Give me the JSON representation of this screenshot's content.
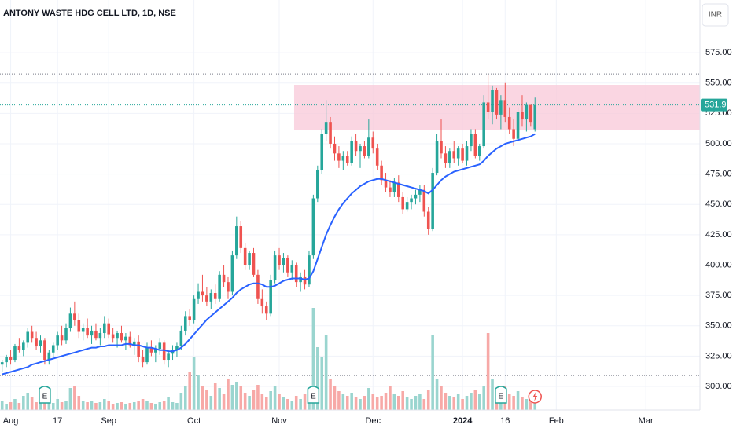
{
  "chart_data": {
    "type": "candlestick",
    "title": "ANTONY WASTE HDG CELL LTD, 1D, NSE",
    "currency": "INR",
    "up_color": "#26a69a",
    "down_color": "#ef5350",
    "volume_up_color": "#9ad5cf",
    "volume_down_color": "#f7a9a7",
    "ma_color": "#2962ff",
    "zone_color": "#f8c8d8",
    "xlim": [
      -0.5,
      163.7
    ],
    "ylim": [
      280.6,
      618.4
    ],
    "vlim": [
      0,
      522
    ],
    "xticks": [
      {
        "value": 2,
        "label": "Aug"
      },
      {
        "value": 13,
        "label": "17"
      },
      {
        "value": 25,
        "label": "Sep"
      },
      {
        "value": 45,
        "label": "Oct"
      },
      {
        "value": 65,
        "label": "Nov"
      },
      {
        "value": 87,
        "label": "Dec"
      },
      {
        "value": 108,
        "label": "2024"
      },
      {
        "value": 118,
        "label": "16"
      },
      {
        "value": 130,
        "label": "Feb"
      },
      {
        "value": 151,
        "label": "Mar"
      }
    ],
    "yticks": [
      {
        "value": 300,
        "label": "300.00"
      },
      {
        "value": 325,
        "label": "325.00"
      },
      {
        "value": 350,
        "label": "350.00"
      },
      {
        "value": 375,
        "label": "375.00"
      },
      {
        "value": 400,
        "label": "400.00"
      },
      {
        "value": 425,
        "label": "425.00"
      },
      {
        "value": 450,
        "label": "450.00"
      },
      {
        "value": 475,
        "label": "475.00"
      },
      {
        "value": 500,
        "label": "500.00"
      },
      {
        "value": 525,
        "label": "525.00"
      },
      {
        "value": 550,
        "label": "550.00"
      },
      {
        "value": 575,
        "label": "575.00"
      }
    ],
    "levels": [
      557.5,
      309
    ],
    "price_label": {
      "value": 531.9,
      "label": "531.90"
    },
    "zone": {
      "x_start": 68.5,
      "top": 548.5,
      "bottom": 511.6
    },
    "events": [
      {
        "index": 10,
        "label": "E"
      },
      {
        "index": 73,
        "label": "E"
      },
      {
        "index": 117,
        "label": "E"
      }
    ],
    "ohlc": [
      [
        318,
        322,
        312,
        320
      ],
      [
        320,
        326,
        316,
        324
      ],
      [
        324,
        330,
        318,
        322
      ],
      [
        322,
        335,
        320,
        333
      ],
      [
        333,
        340,
        328,
        330
      ],
      [
        330,
        338,
        325,
        336
      ],
      [
        336,
        348,
        332,
        345
      ],
      [
        345,
        350,
        336,
        340
      ],
      [
        340,
        345,
        330,
        333
      ],
      [
        333,
        342,
        328,
        338
      ],
      [
        338,
        340,
        318,
        322
      ],
      [
        322,
        330,
        318,
        328
      ],
      [
        328,
        336,
        324,
        334
      ],
      [
        334,
        345,
        330,
        342
      ],
      [
        342,
        350,
        334,
        338
      ],
      [
        338,
        352,
        335,
        348
      ],
      [
        348,
        365,
        345,
        360
      ],
      [
        360,
        370,
        350,
        355
      ],
      [
        355,
        360,
        340,
        345
      ],
      [
        345,
        352,
        338,
        348
      ],
      [
        348,
        356,
        340,
        342
      ],
      [
        342,
        350,
        335,
        346
      ],
      [
        346,
        352,
        338,
        340
      ],
      [
        340,
        348,
        334,
        344
      ],
      [
        344,
        358,
        340,
        352
      ],
      [
        352,
        356,
        340,
        343
      ],
      [
        343,
        348,
        336,
        340
      ],
      [
        340,
        346,
        332,
        344
      ],
      [
        344,
        350,
        336,
        338
      ],
      [
        338,
        344,
        330,
        341
      ],
      [
        341,
        345,
        332,
        334
      ],
      [
        334,
        340,
        326,
        337
      ],
      [
        337,
        342,
        320,
        324
      ],
      [
        324,
        330,
        316,
        320
      ],
      [
        320,
        336,
        318,
        332
      ],
      [
        332,
        338,
        325,
        328
      ],
      [
        328,
        334,
        320,
        331
      ],
      [
        331,
        340,
        326,
        336
      ],
      [
        336,
        338,
        318,
        322
      ],
      [
        322,
        330,
        316,
        327
      ],
      [
        327,
        334,
        322,
        330
      ],
      [
        330,
        336,
        324,
        333
      ],
      [
        333,
        350,
        330,
        346
      ],
      [
        346,
        362,
        342,
        358
      ],
      [
        358,
        364,
        350,
        355
      ],
      [
        355,
        375,
        352,
        372
      ],
      [
        372,
        385,
        368,
        378
      ],
      [
        378,
        392,
        370,
        375
      ],
      [
        375,
        382,
        366,
        370
      ],
      [
        370,
        380,
        364,
        377
      ],
      [
        377,
        384,
        368,
        372
      ],
      [
        372,
        395,
        370,
        392
      ],
      [
        392,
        400,
        382,
        386
      ],
      [
        386,
        390,
        372,
        378
      ],
      [
        378,
        412,
        375,
        408
      ],
      [
        408,
        440,
        405,
        432
      ],
      [
        432,
        436,
        410,
        414
      ],
      [
        414,
        418,
        396,
        400
      ],
      [
        400,
        412,
        396,
        410
      ],
      [
        410,
        414,
        390,
        392
      ],
      [
        392,
        396,
        368,
        372
      ],
      [
        372,
        380,
        360,
        366
      ],
      [
        366,
        370,
        355,
        360
      ],
      [
        360,
        392,
        358,
        388
      ],
      [
        388,
        412,
        385,
        408
      ],
      [
        408,
        414,
        396,
        400
      ],
      [
        400,
        410,
        394,
        406
      ],
      [
        406,
        408,
        390,
        394
      ],
      [
        394,
        404,
        388,
        400
      ],
      [
        400,
        402,
        382,
        386
      ],
      [
        386,
        394,
        378,
        390
      ],
      [
        390,
        396,
        380,
        384
      ],
      [
        384,
        412,
        382,
        408
      ],
      [
        408,
        458,
        405,
        455
      ],
      [
        455,
        482,
        452,
        478
      ],
      [
        478,
        512,
        475,
        508
      ],
      [
        508,
        536,
        502,
        518
      ],
      [
        518,
        522,
        496,
        500
      ],
      [
        500,
        506,
        486,
        492
      ],
      [
        492,
        498,
        480,
        486
      ],
      [
        486,
        494,
        478,
        490
      ],
      [
        490,
        494,
        482,
        484
      ],
      [
        484,
        506,
        482,
        502
      ],
      [
        502,
        508,
        490,
        494
      ],
      [
        494,
        500,
        480,
        498
      ],
      [
        498,
        502,
        488,
        490
      ],
      [
        490,
        520,
        488,
        505
      ],
      [
        505,
        510,
        492,
        496
      ],
      [
        496,
        500,
        478,
        482
      ],
      [
        482,
        486,
        466,
        470
      ],
      [
        470,
        476,
        460,
        464
      ],
      [
        464,
        470,
        456,
        460
      ],
      [
        460,
        472,
        456,
        468
      ],
      [
        468,
        474,
        452,
        456
      ],
      [
        456,
        460,
        442,
        446
      ],
      [
        446,
        456,
        444,
        452
      ],
      [
        452,
        458,
        446,
        455
      ],
      [
        455,
        462,
        450,
        458
      ],
      [
        458,
        466,
        452,
        462
      ],
      [
        462,
        466,
        440,
        444
      ],
      [
        444,
        448,
        425,
        430
      ],
      [
        430,
        480,
        428,
        476
      ],
      [
        476,
        508,
        474,
        502
      ],
      [
        502,
        520,
        488,
        492
      ],
      [
        492,
        498,
        480,
        484
      ],
      [
        484,
        496,
        480,
        494
      ],
      [
        494,
        502,
        484,
        488
      ],
      [
        488,
        498,
        482,
        496
      ],
      [
        496,
        500,
        484,
        486
      ],
      [
        486,
        502,
        482,
        498
      ],
      [
        498,
        512,
        494,
        508
      ],
      [
        508,
        512,
        488,
        490
      ],
      [
        490,
        500,
        486,
        498
      ],
      [
        498,
        540,
        496,
        534
      ],
      [
        534,
        557,
        520,
        526
      ],
      [
        526,
        548,
        516,
        544
      ],
      [
        544,
        546,
        520,
        524
      ],
      [
        524,
        540,
        512,
        536
      ],
      [
        536,
        550,
        518,
        522
      ],
      [
        522,
        530,
        508,
        512
      ],
      [
        512,
        520,
        498,
        504
      ],
      [
        504,
        530,
        502,
        526
      ],
      [
        526,
        540,
        514,
        520
      ],
      [
        520,
        534,
        510,
        532
      ],
      [
        532,
        532,
        514,
        518
      ],
      [
        512,
        538,
        510,
        531.9
      ]
    ],
    "ma": [
      310,
      311,
      312,
      313,
      314,
      315,
      316,
      318,
      319,
      320,
      321,
      322,
      323,
      324,
      325,
      326,
      327,
      328,
      329,
      330,
      331,
      332,
      332,
      333,
      333,
      334,
      334,
      334,
      334,
      335,
      335,
      334,
      334,
      333,
      332,
      332,
      331,
      330,
      330,
      329,
      329,
      330,
      332,
      335,
      339,
      343,
      347,
      351,
      355,
      358,
      361,
      364,
      367,
      370,
      373,
      377,
      380,
      382,
      384,
      385,
      385,
      384,
      382,
      382,
      383,
      385,
      387,
      388,
      389,
      389,
      389,
      388,
      389,
      395,
      405,
      415,
      425,
      433,
      440,
      446,
      451,
      455,
      459,
      462,
      465,
      467,
      469,
      470,
      471,
      471,
      470,
      469,
      468,
      467,
      466,
      465,
      464,
      463,
      462,
      461,
      459,
      462,
      466,
      470,
      473,
      475,
      477,
      478,
      479,
      480,
      481,
      482,
      483,
      486,
      490,
      493,
      496,
      498,
      500,
      501,
      502,
      503,
      504,
      505,
      506,
      508
    ],
    "volume": [
      12,
      8,
      10,
      14,
      9,
      18,
      22,
      16,
      10,
      14,
      20,
      12,
      9,
      14,
      10,
      12,
      28,
      30,
      18,
      12,
      10,
      11,
      9,
      10,
      14,
      12,
      8,
      9,
      10,
      8,
      9,
      10,
      12,
      14,
      11,
      9,
      8,
      10,
      12,
      16,
      10,
      9,
      22,
      30,
      48,
      68,
      45,
      30,
      26,
      18,
      34,
      28,
      20,
      40,
      32,
      36,
      30,
      22,
      18,
      26,
      32,
      20,
      16,
      24,
      30,
      20,
      16,
      14,
      12,
      18,
      14,
      20,
      16,
      130,
      80,
      68,
      95,
      40,
      30,
      24,
      20,
      18,
      22,
      16,
      14,
      18,
      28,
      20,
      16,
      18,
      22,
      30,
      20,
      18,
      24,
      16,
      14,
      18,
      20,
      14,
      26,
      95,
      40,
      30,
      22,
      18,
      16,
      20,
      14,
      18,
      22,
      26,
      20,
      30,
      98,
      40,
      28,
      22,
      30,
      20,
      18,
      24,
      16,
      14,
      12,
      10
    ]
  }
}
